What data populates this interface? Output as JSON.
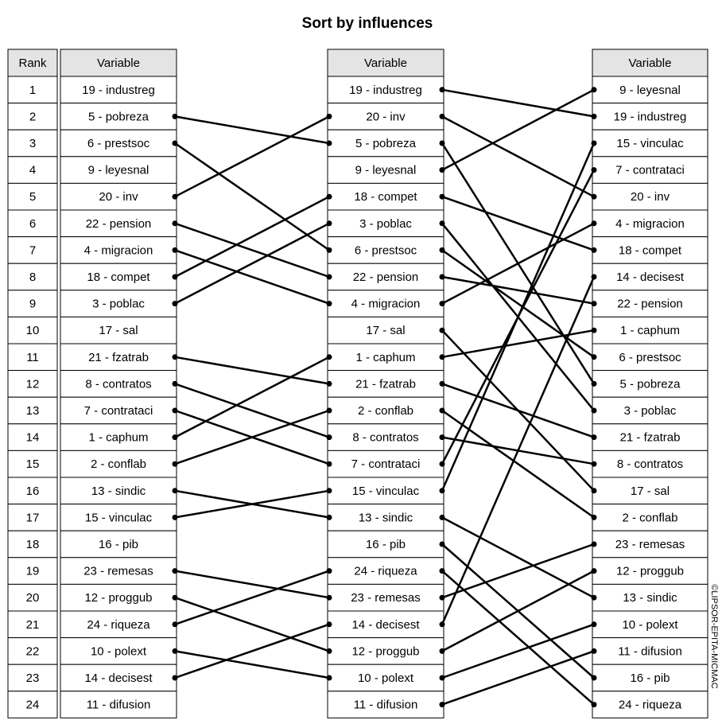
{
  "title": "Sort by influences",
  "rank_header": "Rank",
  "ranks": [
    1,
    2,
    3,
    4,
    5,
    6,
    7,
    8,
    9,
    10,
    11,
    12,
    13,
    14,
    15,
    16,
    17,
    18,
    19,
    20,
    21,
    22,
    23,
    24
  ],
  "columns": [
    {
      "header": "Variable",
      "items": [
        "19 - industreg",
        "5 - pobreza",
        "6 - prestsoc",
        "9 - leyesnal",
        "20 - inv",
        "22 - pension",
        "4 - migracion",
        "18 - compet",
        "3 - poblac",
        "17 - sal",
        "21 - fzatrab",
        "8 - contratos",
        "7 - contrataci",
        "1 - caphum",
        "2 - conflab",
        "13 - sindic",
        "15 - vinculac",
        "16 - pib",
        "23 - remesas",
        "12 - proggub",
        "24 - riqueza",
        "10 - polext",
        "14 - decisest",
        "11 - difusion"
      ]
    },
    {
      "header": "Variable",
      "items": [
        "19 - industreg",
        "20 - inv",
        "5 - pobreza",
        "9 - leyesnal",
        "18 - compet",
        "3 - poblac",
        "6 - prestsoc",
        "22 - pension",
        "4 - migracion",
        "17 - sal",
        "1 - caphum",
        "21 - fzatrab",
        "2 - conflab",
        "8 - contratos",
        "7 - contrataci",
        "15 - vinculac",
        "13 - sindic",
        "16 - pib",
        "24 - riqueza",
        "23 - remesas",
        "14 - decisest",
        "12 - proggub",
        "10 - polext",
        "11 - difusion"
      ]
    },
    {
      "header": "Variable",
      "items": [
        "9 - leyesnal",
        "19 - industreg",
        "15 - vinculac",
        "7 - contrataci",
        "20 - inv",
        "4 - migracion",
        "18 - compet",
        "14 - decisest",
        "22 - pension",
        "1 - caphum",
        "6 - prestsoc",
        "5 - pobreza",
        "3 - poblac",
        "21 - fzatrab",
        "8 - contratos",
        "17 - sal",
        "2 - conflab",
        "23 - remesas",
        "12 - proggub",
        "13 - sindic",
        "10 - polext",
        "11 - difusion",
        "16 - pib",
        "24 - riqueza"
      ]
    }
  ],
  "copyright": "©LIPSOR-EPITA-MICMAC"
}
